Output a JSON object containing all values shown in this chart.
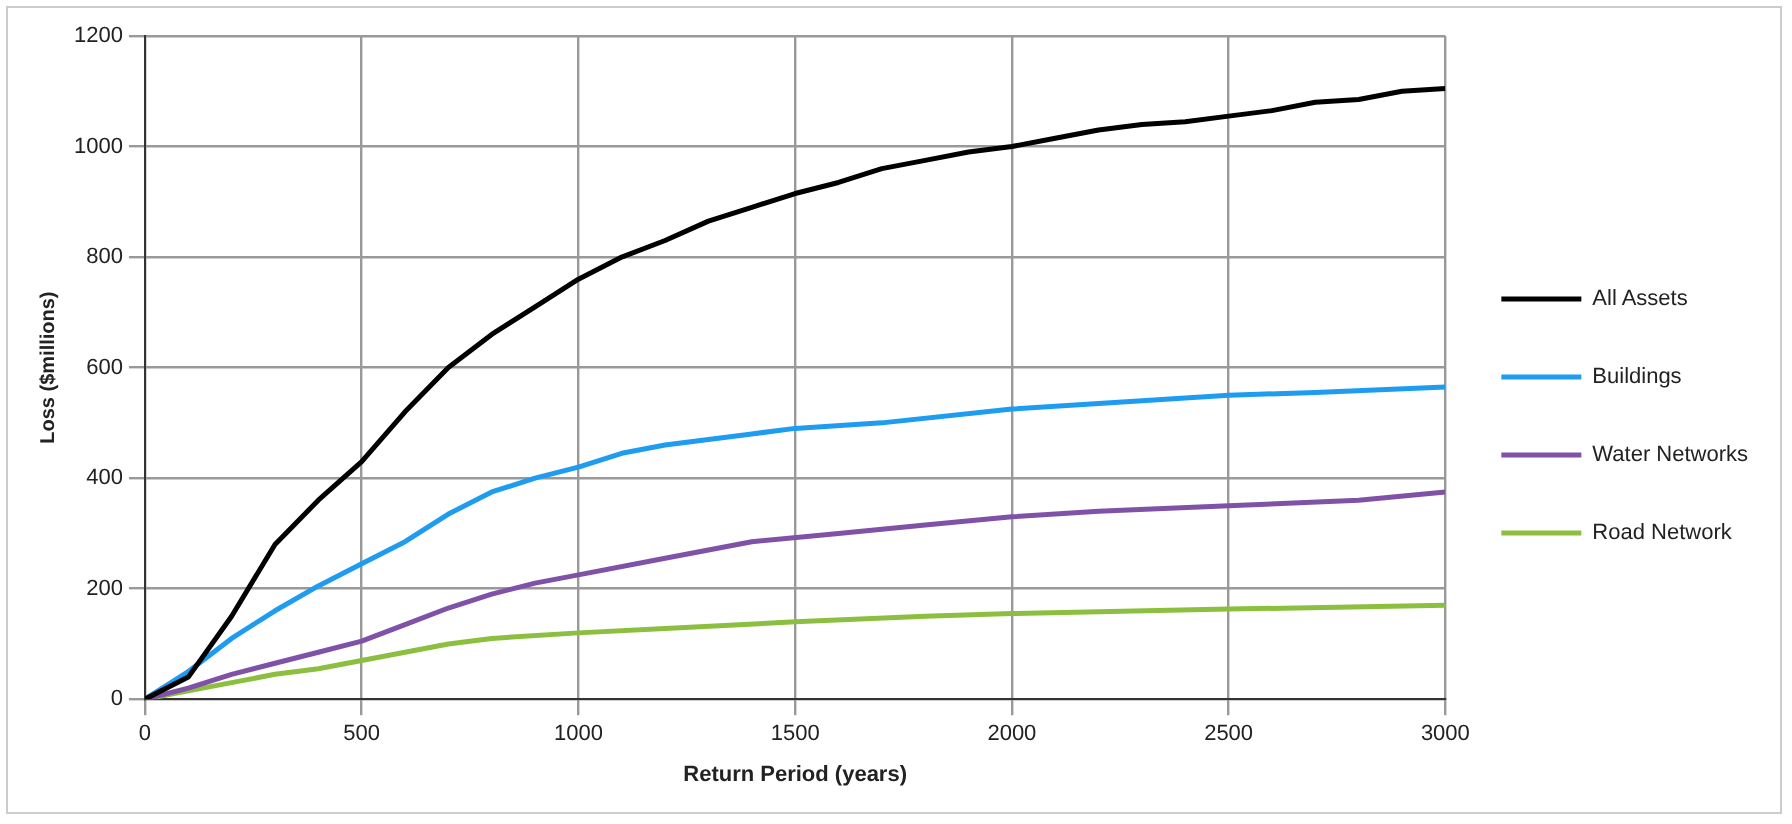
{
  "chart_data": {
    "type": "line",
    "xlabel": "Return Period (years)",
    "ylabel": "Loss ($millions)",
    "xlim": [
      0,
      3000
    ],
    "xticks": [
      0,
      500,
      1000,
      1500,
      2000,
      2500,
      3000
    ],
    "ylim": [
      0,
      1200
    ],
    "yticks": [
      0,
      200,
      400,
      600,
      800,
      1000,
      1200
    ],
    "grid": true,
    "legend": "right",
    "marker": "none",
    "line_style": "solid",
    "series": [
      {
        "name": "All Assets",
        "color": "#000000",
        "x": [
          0,
          100,
          200,
          300,
          400,
          500,
          600,
          700,
          750,
          800,
          900,
          1000,
          1100,
          1200,
          1300,
          1400,
          1500,
          1600,
          1700,
          1800,
          1900,
          2000,
          2100,
          2200,
          2300,
          2400,
          2500,
          2600,
          2700,
          2800,
          2900,
          3000
        ],
        "values": [
          0,
          40,
          150,
          280,
          360,
          430,
          520,
          600,
          630,
          660,
          710,
          760,
          800,
          830,
          865,
          890,
          915,
          935,
          960,
          975,
          990,
          1000,
          1015,
          1030,
          1040,
          1045,
          1055,
          1065,
          1080,
          1085,
          1100,
          1105
        ]
      },
      {
        "name": "Buildings",
        "color": "#1e9cf0",
        "x": [
          0,
          100,
          200,
          300,
          400,
          500,
          600,
          700,
          800,
          900,
          1000,
          1100,
          1200,
          1300,
          1400,
          1500,
          1700,
          2000,
          2300,
          2500,
          2700,
          3000
        ],
        "values": [
          0,
          50,
          110,
          160,
          205,
          245,
          285,
          335,
          375,
          400,
          420,
          445,
          460,
          470,
          480,
          490,
          500,
          525,
          540,
          550,
          555,
          565
        ]
      },
      {
        "name": "Water Networks",
        "color": "#7f52a8",
        "x": [
          0,
          100,
          200,
          300,
          400,
          500,
          600,
          700,
          800,
          900,
          1000,
          1200,
          1400,
          1600,
          1800,
          2000,
          2200,
          2500,
          2800,
          3000
        ],
        "values": [
          0,
          20,
          45,
          65,
          85,
          105,
          135,
          165,
          190,
          210,
          225,
          255,
          285,
          300,
          315,
          330,
          340,
          350,
          360,
          375
        ]
      },
      {
        "name": "Road Network",
        "color": "#8cbf3f",
        "x": [
          0,
          100,
          200,
          300,
          400,
          500,
          600,
          700,
          800,
          1000,
          1200,
          1500,
          1800,
          2000,
          2500,
          3000
        ],
        "values": [
          0,
          15,
          30,
          45,
          55,
          70,
          85,
          100,
          110,
          120,
          128,
          140,
          150,
          155,
          163,
          170
        ]
      }
    ]
  }
}
